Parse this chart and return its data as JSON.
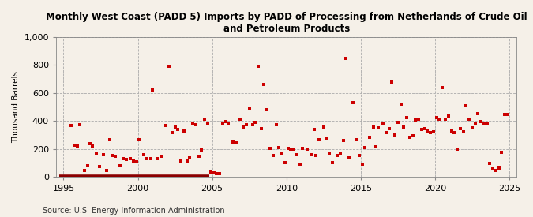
{
  "title": "Monthly West Coast (PADD 5) Imports by PADD of Processing from Netherlands of Crude Oil\nand Petroleum Products",
  "ylabel": "Thousand Barrels",
  "source": "Source: U.S. Energy Information Administration",
  "bg_color": "#f5f0e8",
  "dot_color": "#cc0000",
  "zero_bar_color": "#8b0000",
  "ylim": [
    0,
    1000
  ],
  "yticks": [
    0,
    200,
    400,
    600,
    800,
    1000
  ],
  "ytick_labels": [
    "0",
    "200",
    "400",
    "600",
    "800",
    "1,000"
  ],
  "xlim": [
    1994.5,
    2025.5
  ],
  "xticks": [
    1995,
    2000,
    2005,
    2010,
    2015,
    2020,
    2025
  ],
  "data": [
    [
      1995.5,
      370
    ],
    [
      1995.75,
      230
    ],
    [
      1995.92,
      220
    ],
    [
      1996.1,
      375
    ],
    [
      1996.4,
      50
    ],
    [
      1996.6,
      80
    ],
    [
      1996.8,
      240
    ],
    [
      1996.95,
      225
    ],
    [
      1997.2,
      170
    ],
    [
      1997.4,
      75
    ],
    [
      1997.7,
      160
    ],
    [
      1997.9,
      50
    ],
    [
      1998.1,
      270
    ],
    [
      1998.3,
      155
    ],
    [
      1998.5,
      150
    ],
    [
      1998.8,
      80
    ],
    [
      1999.0,
      130
    ],
    [
      1999.2,
      125
    ],
    [
      1999.5,
      130
    ],
    [
      1999.7,
      115
    ],
    [
      1999.9,
      110
    ],
    [
      2000.1,
      270
    ],
    [
      2000.4,
      160
    ],
    [
      2000.6,
      135
    ],
    [
      2000.85,
      130
    ],
    [
      2001.0,
      625
    ],
    [
      2001.3,
      130
    ],
    [
      2001.6,
      150
    ],
    [
      2001.9,
      370
    ],
    [
      2002.1,
      790
    ],
    [
      2002.3,
      320
    ],
    [
      2002.5,
      355
    ],
    [
      2002.7,
      340
    ],
    [
      2002.9,
      115
    ],
    [
      2003.1,
      330
    ],
    [
      2003.3,
      115
    ],
    [
      2003.5,
      140
    ],
    [
      2003.7,
      385
    ],
    [
      2003.9,
      375
    ],
    [
      2004.1,
      150
    ],
    [
      2004.3,
      195
    ],
    [
      2004.5,
      415
    ],
    [
      2004.7,
      380
    ],
    [
      2004.9,
      35
    ],
    [
      2005.1,
      30
    ],
    [
      2005.3,
      25
    ],
    [
      2005.5,
      25
    ],
    [
      2005.7,
      380
    ],
    [
      2005.9,
      395
    ],
    [
      2006.1,
      380
    ],
    [
      2006.4,
      250
    ],
    [
      2006.65,
      245
    ],
    [
      2006.9,
      415
    ],
    [
      2007.1,
      355
    ],
    [
      2007.3,
      375
    ],
    [
      2007.5,
      490
    ],
    [
      2007.75,
      375
    ],
    [
      2007.9,
      390
    ],
    [
      2008.1,
      790
    ],
    [
      2008.3,
      345
    ],
    [
      2008.5,
      660
    ],
    [
      2008.7,
      480
    ],
    [
      2008.9,
      205
    ],
    [
      2009.1,
      155
    ],
    [
      2009.3,
      375
    ],
    [
      2009.5,
      210
    ],
    [
      2009.7,
      165
    ],
    [
      2009.9,
      105
    ],
    [
      2010.1,
      205
    ],
    [
      2010.3,
      200
    ],
    [
      2010.5,
      200
    ],
    [
      2010.7,
      160
    ],
    [
      2010.9,
      90
    ],
    [
      2011.1,
      205
    ],
    [
      2011.4,
      200
    ],
    [
      2011.65,
      160
    ],
    [
      2011.85,
      340
    ],
    [
      2012.0,
      155
    ],
    [
      2012.2,
      270
    ],
    [
      2012.5,
      360
    ],
    [
      2012.7,
      280
    ],
    [
      2012.9,
      170
    ],
    [
      2013.1,
      105
    ],
    [
      2013.4,
      155
    ],
    [
      2013.65,
      170
    ],
    [
      2013.85,
      260
    ],
    [
      2014.0,
      845
    ],
    [
      2014.2,
      140
    ],
    [
      2014.5,
      530
    ],
    [
      2014.7,
      265
    ],
    [
      2014.9,
      155
    ],
    [
      2015.1,
      90
    ],
    [
      2015.3,
      210
    ],
    [
      2015.6,
      285
    ],
    [
      2015.85,
      360
    ],
    [
      2016.0,
      215
    ],
    [
      2016.2,
      350
    ],
    [
      2016.5,
      380
    ],
    [
      2016.7,
      320
    ],
    [
      2016.9,
      345
    ],
    [
      2017.1,
      680
    ],
    [
      2017.3,
      300
    ],
    [
      2017.5,
      390
    ],
    [
      2017.7,
      520
    ],
    [
      2017.9,
      355
    ],
    [
      2018.1,
      425
    ],
    [
      2018.3,
      285
    ],
    [
      2018.5,
      295
    ],
    [
      2018.7,
      410
    ],
    [
      2018.9,
      415
    ],
    [
      2019.1,
      340
    ],
    [
      2019.3,
      345
    ],
    [
      2019.5,
      330
    ],
    [
      2019.7,
      320
    ],
    [
      2019.9,
      325
    ],
    [
      2020.1,
      425
    ],
    [
      2020.3,
      415
    ],
    [
      2020.5,
      640
    ],
    [
      2020.7,
      415
    ],
    [
      2020.9,
      435
    ],
    [
      2021.1,
      330
    ],
    [
      2021.3,
      320
    ],
    [
      2021.5,
      200
    ],
    [
      2021.7,
      345
    ],
    [
      2021.9,
      325
    ],
    [
      2022.1,
      510
    ],
    [
      2022.3,
      415
    ],
    [
      2022.5,
      350
    ],
    [
      2022.7,
      380
    ],
    [
      2022.9,
      455
    ],
    [
      2023.1,
      395
    ],
    [
      2023.3,
      380
    ],
    [
      2023.5,
      380
    ],
    [
      2023.7,
      100
    ],
    [
      2023.9,
      60
    ],
    [
      2024.1,
      50
    ],
    [
      2024.3,
      65
    ],
    [
      2024.5,
      180
    ],
    [
      2024.7,
      450
    ],
    [
      2024.9,
      445
    ]
  ],
  "zero_bar_start": 1994.7,
  "zero_bar_end": 2004.8
}
